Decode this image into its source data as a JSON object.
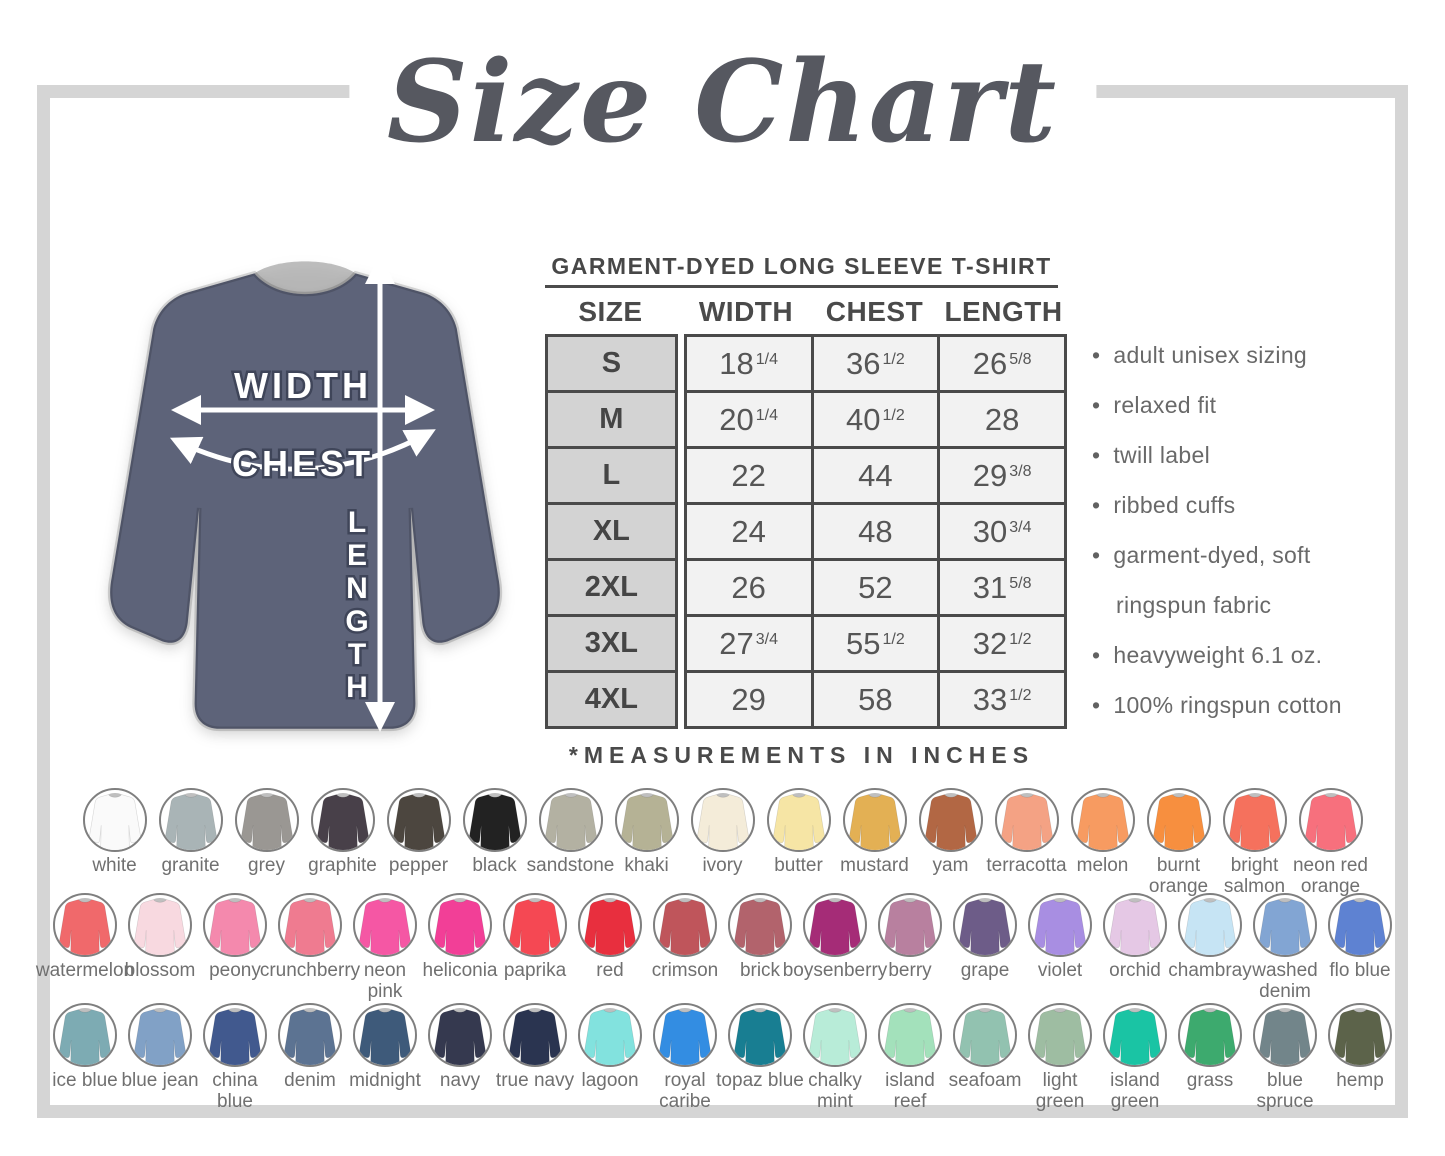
{
  "title": "Size Chart",
  "diagram": {
    "width_label": "WIDTH",
    "chest_label": "CHEST",
    "length_label": "LENGTH",
    "shirt_color": "#5d6379"
  },
  "table": {
    "heading": "GARMENT-DYED LONG SLEEVE T-SHIRT",
    "columns": [
      "SIZE",
      "WIDTH",
      "CHEST",
      "LENGTH"
    ],
    "rows": [
      {
        "size": "S",
        "width": {
          "v": "18",
          "f": "1/4"
        },
        "chest": {
          "v": "36",
          "f": "1/2"
        },
        "length": {
          "v": "26",
          "f": "5/8"
        }
      },
      {
        "size": "M",
        "width": {
          "v": "20",
          "f": "1/4"
        },
        "chest": {
          "v": "40",
          "f": "1/2"
        },
        "length": {
          "v": "28",
          "f": ""
        }
      },
      {
        "size": "L",
        "width": {
          "v": "22",
          "f": ""
        },
        "chest": {
          "v": "44",
          "f": ""
        },
        "length": {
          "v": "29",
          "f": "3/8"
        }
      },
      {
        "size": "XL",
        "width": {
          "v": "24",
          "f": ""
        },
        "chest": {
          "v": "48",
          "f": ""
        },
        "length": {
          "v": "30",
          "f": "3/4"
        }
      },
      {
        "size": "2XL",
        "width": {
          "v": "26",
          "f": ""
        },
        "chest": {
          "v": "52",
          "f": ""
        },
        "length": {
          "v": "31",
          "f": "5/8"
        }
      },
      {
        "size": "3XL",
        "width": {
          "v": "27",
          "f": "3/4"
        },
        "chest": {
          "v": "55",
          "f": "1/2"
        },
        "length": {
          "v": "32",
          "f": "1/2"
        }
      },
      {
        "size": "4XL",
        "width": {
          "v": "29",
          "f": ""
        },
        "chest": {
          "v": "58",
          "f": ""
        },
        "length": {
          "v": "33",
          "f": "1/2"
        }
      }
    ],
    "footnote": "*MEASUREMENTS IN INCHES"
  },
  "features": [
    "adult unisex sizing",
    "relaxed fit",
    "twill label",
    "ribbed cuffs",
    "garment-dyed, soft\nringspun fabric",
    "heavyweight 6.1 oz.",
    "100% ringspun cotton"
  ],
  "swatch_rows": [
    [
      {
        "label": "white",
        "color": "#fafafa"
      },
      {
        "label": "granite",
        "color": "#a9b4b6"
      },
      {
        "label": "grey",
        "color": "#9a9793"
      },
      {
        "label": "graphite",
        "color": "#484049"
      },
      {
        "label": "pepper",
        "color": "#4c463f"
      },
      {
        "label": "black",
        "color": "#222222"
      },
      {
        "label": "sandstone",
        "color": "#b3b1a2"
      },
      {
        "label": "khaki",
        "color": "#b5b295"
      },
      {
        "label": "ivory",
        "color": "#f4ecd9"
      },
      {
        "label": "butter",
        "color": "#f6e5a5"
      },
      {
        "label": "mustard",
        "color": "#e3b054"
      },
      {
        "label": "yam",
        "color": "#b26744"
      },
      {
        "label": "terracotta",
        "color": "#f4a284"
      },
      {
        "label": "melon",
        "color": "#f79b61"
      },
      {
        "label": "burnt\norange",
        "color": "#f78f3f"
      },
      {
        "label": "bright\nsalmon",
        "color": "#f5715d"
      },
      {
        "label": "neon red\norange",
        "color": "#f7707d"
      }
    ],
    [
      {
        "label": "watermelon",
        "color": "#f0696b"
      },
      {
        "label": "blossom",
        "color": "#f8d9e0"
      },
      {
        "label": "peony",
        "color": "#f489ad"
      },
      {
        "label": "crunchberry",
        "color": "#ef7b90"
      },
      {
        "label": "neon\npink",
        "color": "#f557a4"
      },
      {
        "label": "heliconia",
        "color": "#f23f97"
      },
      {
        "label": "paprika",
        "color": "#f54853"
      },
      {
        "label": "red",
        "color": "#e82f3e"
      },
      {
        "label": "crimson",
        "color": "#bf555b"
      },
      {
        "label": "brick",
        "color": "#b2636c"
      },
      {
        "label": "boysenberry",
        "color": "#a52c77"
      },
      {
        "label": "berry",
        "color": "#b8809f"
      },
      {
        "label": "grape",
        "color": "#6d5c88"
      },
      {
        "label": "violet",
        "color": "#a88ee2"
      },
      {
        "label": "orchid",
        "color": "#e5c8e5"
      },
      {
        "label": "chambray",
        "color": "#c6e4f4"
      },
      {
        "label": "washed\ndenim",
        "color": "#82a5d3"
      },
      {
        "label": "flo blue",
        "color": "#5e82d2"
      }
    ],
    [
      {
        "label": "ice blue",
        "color": "#7dabb3"
      },
      {
        "label": "blue jean",
        "color": "#81a1c6"
      },
      {
        "label": "china\nblue",
        "color": "#41598e"
      },
      {
        "label": "denim",
        "color": "#5c7392"
      },
      {
        "label": "midnight",
        "color": "#3e5a7a"
      },
      {
        "label": "navy",
        "color": "#35394f"
      },
      {
        "label": "true navy",
        "color": "#2a3450"
      },
      {
        "label": "lagoon",
        "color": "#82e2de"
      },
      {
        "label": "royal\ncaribe",
        "color": "#338de2"
      },
      {
        "label": "topaz blue",
        "color": "#187e92"
      },
      {
        "label": "chalky\nmint",
        "color": "#b8ecd8"
      },
      {
        "label": "island\nreef",
        "color": "#a3e1bb"
      },
      {
        "label": "seafoam",
        "color": "#92c2b0"
      },
      {
        "label": "light\ngreen",
        "color": "#9ebda2"
      },
      {
        "label": "island\ngreen",
        "color": "#1ac4a4"
      },
      {
        "label": "grass",
        "color": "#3daa6e"
      },
      {
        "label": "blue\nspruce",
        "color": "#72858a"
      },
      {
        "label": "hemp",
        "color": "#5c634a"
      }
    ]
  ]
}
